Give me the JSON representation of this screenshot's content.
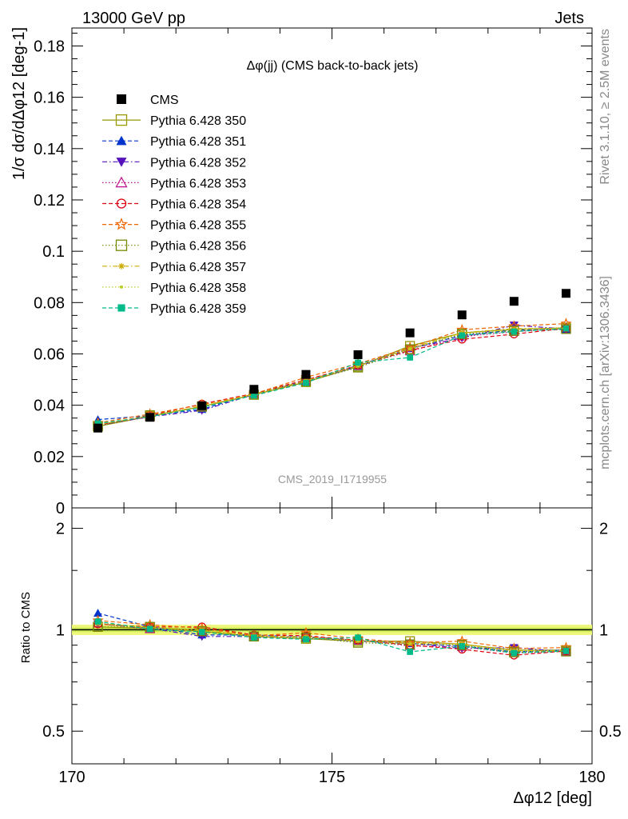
{
  "header": {
    "left": "13000 GeV pp",
    "right": "Jets"
  },
  "side": {
    "top": "Rivet 3.1.10, ≥ 2.5M events",
    "bottom": "mcplots.cern.ch [arXiv:1306.3436]"
  },
  "chart_data": {
    "type": "scatter",
    "title": "Δφ(jj) (CMS back-to-back jets)",
    "watermark": "CMS_2019_I1719955",
    "xlabel": "Δφ12 [deg]",
    "ylabel": "1/σ dσ/dΔφ12 [deg-1]",
    "ratio_ylabel": "Ratio to CMS",
    "xlim": [
      170,
      180
    ],
    "ylim": [
      0,
      0.187
    ],
    "ratio_ylim": [
      0.4,
      2.3
    ],
    "ratio_log": true,
    "x_ticks": [
      "170",
      "175",
      "180"
    ],
    "y_ticks": [
      "0",
      "0.02",
      "0.04",
      "0.06",
      "0.08",
      "0.1",
      "0.12",
      "0.14",
      "0.16",
      "0.18"
    ],
    "ratio_ticks": [
      "0.5",
      "1",
      "2"
    ],
    "x": [
      170.5,
      171.5,
      172.5,
      173.5,
      174.5,
      175.5,
      176.5,
      177.5,
      178.5,
      179.5
    ],
    "legend_position": "top-left",
    "series": [
      {
        "name": "CMS",
        "color": "#000000",
        "marker": "filled-square",
        "line": "none",
        "values": [
          0.0311,
          0.0353,
          0.0398,
          0.0462,
          0.052,
          0.0597,
          0.0682,
          0.0752,
          0.0805,
          0.0836
        ],
        "ratio": [
          1,
          1,
          1,
          1,
          1,
          1,
          1,
          1,
          1,
          1
        ]
      },
      {
        "name": "Pythia 6.428 350",
        "color": "#999900",
        "marker": "open-square",
        "line": "solid",
        "values": [
          0.0318,
          0.0357,
          0.0395,
          0.0441,
          0.049,
          0.0551,
          0.0631,
          0.0682,
          0.0696,
          0.0702
        ],
        "ratio": [
          1.02,
          1.01,
          0.99,
          0.955,
          0.94,
          0.925,
          0.925,
          0.905,
          0.87,
          0.87
        ]
      },
      {
        "name": "Pythia 6.428 351",
        "color": "#0033cc",
        "marker": "filled-triangle-up",
        "line": "dashed",
        "values": [
          0.0344,
          0.0359,
          0.0384,
          0.0445,
          0.0494,
          0.0551,
          0.0621,
          0.0672,
          0.0693,
          0.0695
        ],
        "ratio": [
          1.12,
          1.02,
          0.965,
          0.965,
          0.95,
          0.925,
          0.91,
          0.895,
          0.86,
          0.87
        ]
      },
      {
        "name": "Pythia 6.428 352",
        "color": "#5511bb",
        "marker": "filled-triangle-down",
        "line": "dashdot",
        "values": [
          0.0322,
          0.0355,
          0.038,
          0.0442,
          0.0496,
          0.0555,
          0.0622,
          0.0662,
          0.0712,
          0.0697
        ],
        "ratio": [
          1.04,
          1.01,
          0.955,
          0.955,
          0.955,
          0.93,
          0.912,
          0.88,
          0.885,
          0.86
        ]
      },
      {
        "name": "Pythia 6.428 353",
        "color": "#bb1188",
        "marker": "open-triangle-up",
        "line": "dotted",
        "values": [
          0.0325,
          0.0354,
          0.0393,
          0.0442,
          0.0492,
          0.0555,
          0.061,
          0.0668,
          0.0686,
          0.0702
        ],
        "ratio": [
          1.045,
          1.005,
          0.988,
          0.955,
          0.948,
          0.93,
          0.895,
          0.89,
          0.853,
          0.862
        ]
      },
      {
        "name": "Pythia 6.428 354",
        "color": "#dd0011",
        "marker": "open-circle",
        "line": "dashed",
        "values": [
          0.0323,
          0.036,
          0.0405,
          0.0446,
          0.0499,
          0.0555,
          0.0614,
          0.0657,
          0.0677,
          0.07
        ],
        "ratio": [
          1.04,
          1.02,
          1.02,
          0.965,
          0.96,
          0.93,
          0.9,
          0.875,
          0.84,
          0.865
        ]
      },
      {
        "name": "Pythia 6.428 355",
        "color": "#ee6600",
        "marker": "open-star",
        "line": "dashed",
        "values": [
          0.0331,
          0.0366,
          0.0402,
          0.0444,
          0.0509,
          0.0562,
          0.0625,
          0.0694,
          0.0708,
          0.0718
        ],
        "ratio": [
          1.065,
          1.035,
          1.01,
          0.96,
          0.98,
          0.94,
          0.915,
          0.925,
          0.88,
          0.885
        ]
      },
      {
        "name": "Pythia 6.428 356",
        "color": "#778800",
        "marker": "open-square",
        "line": "dotted",
        "values": [
          0.0317,
          0.0361,
          0.0394,
          0.0441,
          0.0493,
          0.0547,
          0.0618,
          0.0677,
          0.069,
          0.0697
        ],
        "ratio": [
          1.02,
          1.02,
          0.99,
          0.955,
          0.948,
          0.915,
          0.905,
          0.9,
          0.857,
          0.862
        ]
      },
      {
        "name": "Pythia 6.428 357",
        "color": "#ccaa00",
        "marker": "small-star",
        "line": "dashdot",
        "values": [
          0.0324,
          0.0358,
          0.0397,
          0.0443,
          0.0496,
          0.0553,
          0.0622,
          0.0683,
          0.0698,
          0.07
        ],
        "ratio": [
          1.042,
          1.015,
          0.998,
          0.959,
          0.953,
          0.926,
          0.912,
          0.908,
          0.867,
          0.866
        ]
      },
      {
        "name": "Pythia 6.428 358",
        "color": "#bbcc22",
        "marker": "small-dot",
        "line": "dotted",
        "values": [
          0.0326,
          0.0357,
          0.0395,
          0.0442,
          0.0494,
          0.0554,
          0.062,
          0.068,
          0.0695,
          0.07
        ],
        "ratio": [
          1.048,
          1.012,
          0.992,
          0.957,
          0.95,
          0.928,
          0.909,
          0.904,
          0.864,
          0.866
        ]
      },
      {
        "name": "Pythia 6.428 359",
        "color": "#00bb88",
        "marker": "filled-square-small",
        "line": "dashed",
        "values": [
          0.0329,
          0.0355,
          0.0392,
          0.0438,
          0.0487,
          0.0566,
          0.0586,
          0.0672,
          0.0687,
          0.0699
        ],
        "ratio": [
          1.058,
          1.005,
          0.985,
          0.948,
          0.937,
          0.948,
          0.86,
          0.894,
          0.853,
          0.865
        ]
      }
    ]
  }
}
